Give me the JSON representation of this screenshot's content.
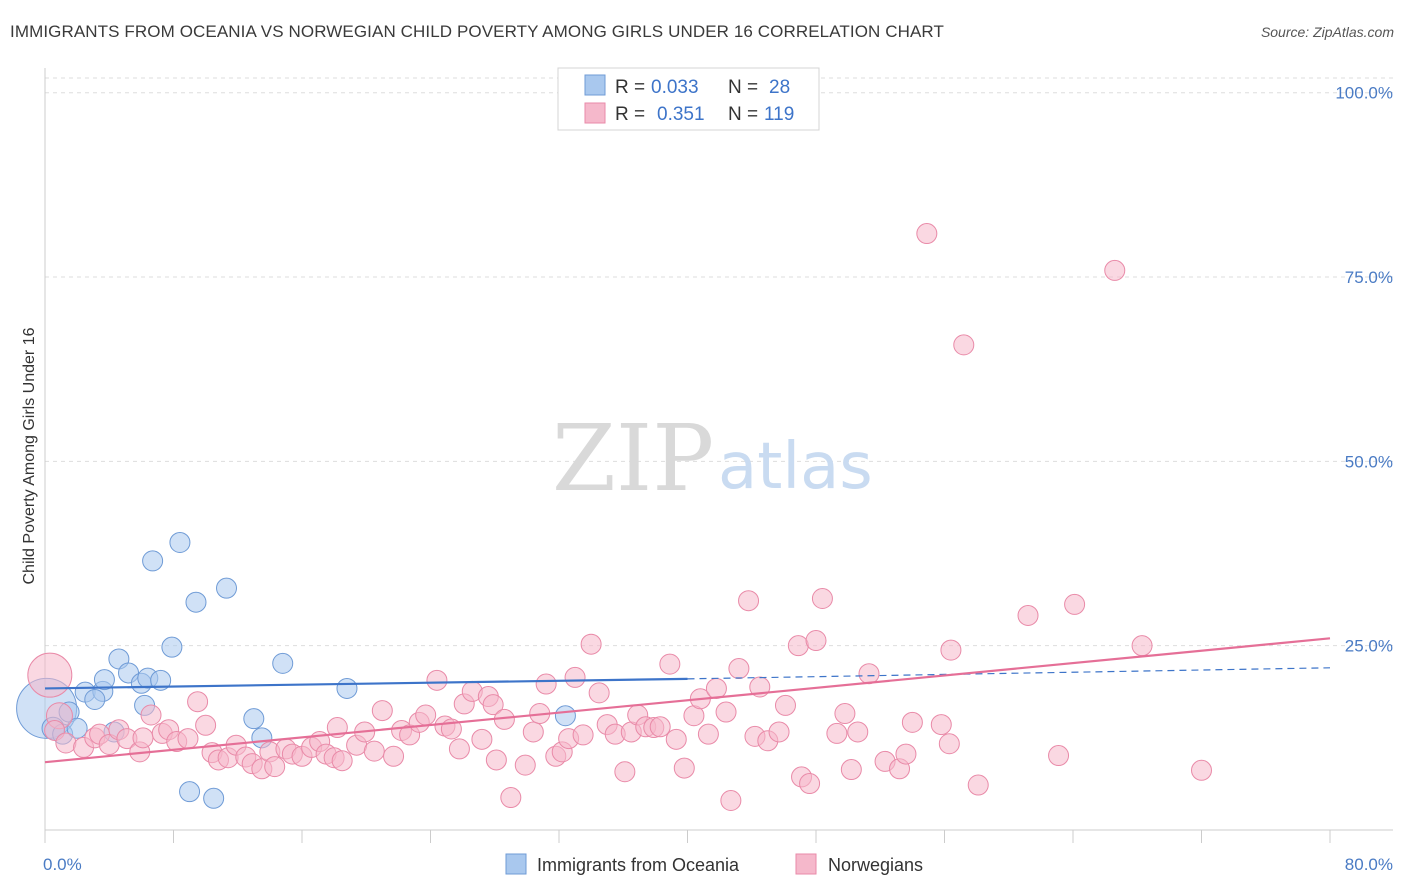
{
  "header": {
    "title": "IMMIGRANTS FROM OCEANIA VS NORWEGIAN CHILD POVERTY AMONG GIRLS UNDER 16 CORRELATION CHART",
    "source": "Source: ZipAtlas.com"
  },
  "watermark": {
    "zip": "ZIP",
    "atlas": "atlas"
  },
  "legend": {
    "series": [
      {
        "r_label": "R =",
        "r_value": "0.033",
        "n_label": "N =",
        "n_value": "28",
        "color": "#a9c8ee",
        "stroke": "#6f9bd6"
      },
      {
        "r_label": "R =",
        "r_value": "0.351",
        "n_label": "N =",
        "n_value": "119",
        "color": "#f5b8cb",
        "stroke": "#e98aa8"
      }
    ]
  },
  "bottom_legend": [
    {
      "label": "Immigrants from Oceania",
      "color": "#a9c8ee",
      "stroke": "#6f9bd6"
    },
    {
      "label": "Norwegians",
      "color": "#f5b8cb",
      "stroke": "#e98aa8"
    }
  ],
  "chart_data": {
    "type": "scatter",
    "ylabel": "Child Poverty Among Girls Under 16",
    "x_tick_labels": [
      "0.0%",
      "80.0%"
    ],
    "y_tick_labels": [
      "25.0%",
      "50.0%",
      "75.0%",
      "100.0%"
    ],
    "y_ticks": [
      25,
      50,
      75,
      100
    ],
    "xlim": [
      0,
      80
    ],
    "ylim": [
      0,
      102
    ],
    "grid": true,
    "legend_position": "top-center",
    "series": [
      {
        "name": "Immigrants from Oceania",
        "color": "#a9c8ee",
        "stroke": "#6f9bd6",
        "points": [
          [
            0.1,
            16.5,
            30
          ],
          [
            0.5,
            13.8,
            11
          ],
          [
            1.5,
            16.0,
            10
          ],
          [
            1.1,
            13.0,
            10
          ],
          [
            2.0,
            13.8,
            10
          ],
          [
            2.5,
            18.7,
            10
          ],
          [
            3.6,
            18.8,
            10
          ],
          [
            3.1,
            17.7,
            10
          ],
          [
            3.7,
            20.4,
            10
          ],
          [
            4.6,
            23.2,
            10
          ],
          [
            5.2,
            21.3,
            10
          ],
          [
            6.0,
            19.9,
            10
          ],
          [
            6.4,
            20.6,
            10
          ],
          [
            6.7,
            36.5,
            10
          ],
          [
            7.2,
            20.3,
            10
          ],
          [
            7.9,
            24.8,
            10
          ],
          [
            8.4,
            39.0,
            10
          ],
          [
            9.4,
            30.9,
            10
          ],
          [
            11.3,
            32.8,
            10
          ],
          [
            6.2,
            16.9,
            10
          ],
          [
            9.0,
            5.2,
            10
          ],
          [
            10.5,
            4.3,
            10
          ],
          [
            13.0,
            15.1,
            10
          ],
          [
            13.5,
            12.5,
            10
          ],
          [
            14.8,
            22.6,
            10
          ],
          [
            18.8,
            19.2,
            10
          ],
          [
            32.4,
            15.5,
            10
          ],
          [
            4.3,
            13.3,
            10
          ]
        ]
      },
      {
        "name": "Norwegians",
        "color": "#f5b8cb",
        "stroke": "#e98aa8",
        "points": [
          [
            0.3,
            21.0,
            22
          ],
          [
            0.9,
            15.5,
            13
          ],
          [
            0.6,
            13.5,
            10
          ],
          [
            1.3,
            11.8,
            10
          ],
          [
            2.4,
            11.2,
            10
          ],
          [
            3.1,
            12.5,
            10
          ],
          [
            3.4,
            13.0,
            10
          ],
          [
            4.0,
            11.6,
            10
          ],
          [
            4.6,
            13.6,
            10
          ],
          [
            5.1,
            12.4,
            10
          ],
          [
            5.9,
            10.6,
            10
          ],
          [
            6.1,
            12.5,
            10
          ],
          [
            6.6,
            15.6,
            10
          ],
          [
            7.3,
            13.1,
            10
          ],
          [
            7.7,
            13.6,
            10
          ],
          [
            8.2,
            12.0,
            10
          ],
          [
            8.9,
            12.4,
            10
          ],
          [
            9.5,
            17.4,
            10
          ],
          [
            10.0,
            14.2,
            10
          ],
          [
            10.4,
            10.5,
            10
          ],
          [
            10.8,
            9.5,
            10
          ],
          [
            11.4,
            9.8,
            10
          ],
          [
            11.9,
            11.5,
            10
          ],
          [
            12.5,
            9.9,
            10
          ],
          [
            12.9,
            9.0,
            10
          ],
          [
            13.5,
            8.3,
            10
          ],
          [
            14.0,
            10.6,
            10
          ],
          [
            14.3,
            8.6,
            10
          ],
          [
            15.0,
            11.0,
            10
          ],
          [
            15.4,
            10.3,
            10
          ],
          [
            16.0,
            10.0,
            10
          ],
          [
            16.6,
            11.2,
            10
          ],
          [
            17.1,
            12.0,
            10
          ],
          [
            17.5,
            10.3,
            10
          ],
          [
            18.0,
            9.8,
            10
          ],
          [
            18.5,
            9.4,
            10
          ],
          [
            18.2,
            13.9,
            10
          ],
          [
            19.4,
            11.5,
            10
          ],
          [
            19.9,
            13.3,
            10
          ],
          [
            20.5,
            10.7,
            10
          ],
          [
            21.0,
            16.2,
            10
          ],
          [
            21.7,
            10.0,
            10
          ],
          [
            22.2,
            13.5,
            10
          ],
          [
            22.7,
            12.9,
            10
          ],
          [
            23.3,
            14.6,
            10
          ],
          [
            23.7,
            15.6,
            10
          ],
          [
            24.4,
            20.3,
            10
          ],
          [
            24.9,
            14.1,
            10
          ],
          [
            25.3,
            13.7,
            10
          ],
          [
            25.8,
            11.0,
            10
          ],
          [
            26.1,
            17.1,
            10
          ],
          [
            26.6,
            18.8,
            10
          ],
          [
            27.2,
            12.3,
            10
          ],
          [
            27.6,
            18.1,
            10
          ],
          [
            27.9,
            17.0,
            10
          ],
          [
            28.6,
            15.0,
            10
          ],
          [
            28.1,
            9.5,
            10
          ],
          [
            29.0,
            4.4,
            10
          ],
          [
            29.9,
            8.8,
            10
          ],
          [
            30.4,
            13.3,
            10
          ],
          [
            30.8,
            15.8,
            10
          ],
          [
            31.2,
            19.8,
            10
          ],
          [
            31.8,
            10.0,
            10
          ],
          [
            32.2,
            10.6,
            10
          ],
          [
            32.6,
            12.4,
            10
          ],
          [
            33.0,
            20.7,
            10
          ],
          [
            33.5,
            12.9,
            10
          ],
          [
            34.0,
            25.2,
            10
          ],
          [
            34.5,
            18.6,
            10
          ],
          [
            35.0,
            14.3,
            10
          ],
          [
            35.5,
            13.0,
            10
          ],
          [
            36.1,
            7.9,
            10
          ],
          [
            36.5,
            13.3,
            10
          ],
          [
            36.9,
            15.6,
            10
          ],
          [
            37.4,
            14.0,
            10
          ],
          [
            37.9,
            13.9,
            10
          ],
          [
            38.3,
            14.0,
            10
          ],
          [
            38.9,
            22.5,
            10
          ],
          [
            39.3,
            12.3,
            10
          ],
          [
            39.8,
            8.4,
            10
          ],
          [
            40.4,
            15.5,
            10
          ],
          [
            40.8,
            17.8,
            10
          ],
          [
            41.3,
            13.0,
            10
          ],
          [
            41.8,
            19.2,
            10
          ],
          [
            42.4,
            16.0,
            10
          ],
          [
            42.7,
            4.0,
            10
          ],
          [
            43.2,
            21.9,
            10
          ],
          [
            43.8,
            31.1,
            10
          ],
          [
            44.2,
            12.7,
            10
          ],
          [
            44.5,
            19.4,
            10
          ],
          [
            45.0,
            12.1,
            10
          ],
          [
            45.7,
            13.3,
            10
          ],
          [
            46.1,
            16.9,
            10
          ],
          [
            46.9,
            25.0,
            10
          ],
          [
            47.1,
            7.2,
            10
          ],
          [
            47.6,
            6.3,
            10
          ],
          [
            48.0,
            25.7,
            10
          ],
          [
            48.4,
            31.4,
            10
          ],
          [
            49.3,
            13.1,
            10
          ],
          [
            49.8,
            15.8,
            10
          ],
          [
            50.2,
            8.2,
            10
          ],
          [
            50.6,
            13.3,
            10
          ],
          [
            51.3,
            21.2,
            10
          ],
          [
            52.3,
            9.3,
            10
          ],
          [
            53.2,
            8.3,
            10
          ],
          [
            53.6,
            10.3,
            10
          ],
          [
            54.0,
            14.6,
            10
          ],
          [
            54.9,
            80.9,
            10
          ],
          [
            55.8,
            14.3,
            10
          ],
          [
            56.3,
            11.7,
            10
          ],
          [
            56.4,
            24.4,
            10
          ],
          [
            57.2,
            65.8,
            10
          ],
          [
            58.1,
            6.1,
            10
          ],
          [
            61.2,
            29.1,
            10
          ],
          [
            63.1,
            10.1,
            10
          ],
          [
            64.1,
            30.6,
            10
          ],
          [
            66.6,
            75.9,
            10
          ],
          [
            68.3,
            25.0,
            10
          ],
          [
            72.0,
            8.1,
            10
          ]
        ]
      }
    ],
    "trend_lines": [
      {
        "series": "Immigrants from Oceania",
        "color": "#3d74c9",
        "x1": 0,
        "y1": 19.2,
        "x2": 40,
        "y2": 20.5,
        "dash_to_x": 80,
        "dash_to_y": 22.0
      },
      {
        "series": "Norwegians",
        "color": "#e56f97",
        "x1": 0,
        "y1": 9.2,
        "x2": 80,
        "y2": 26.0
      }
    ]
  }
}
